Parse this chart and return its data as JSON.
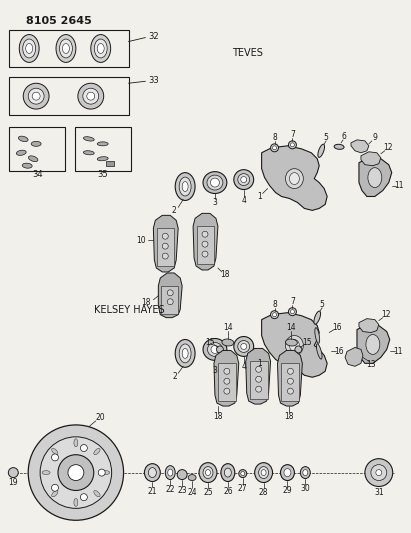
{
  "title": "8105 2645",
  "subtitle_teves": "TEVES",
  "subtitle_kelsey": "KELSEY HAYES",
  "bg_color": "#f2f0eb",
  "line_color": "#1a1a1a",
  "text_color": "#1a1a1a",
  "figsize": [
    4.11,
    5.33
  ],
  "dpi": 100
}
